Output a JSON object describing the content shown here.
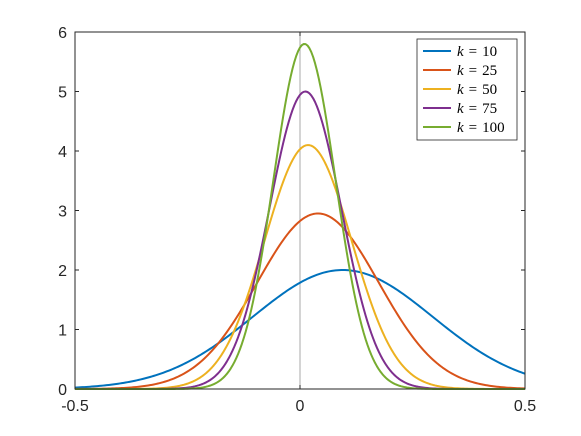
{
  "chart_data": {
    "type": "line",
    "title": "",
    "xlabel": "",
    "ylabel": "",
    "xlim": [
      -0.5,
      0.5
    ],
    "ylim": [
      0,
      6
    ],
    "grid": false,
    "xticks": [
      "-0.5",
      "0",
      "0.5"
    ],
    "yticks": [
      "0",
      "1",
      "2",
      "3",
      "4",
      "5",
      "6"
    ],
    "legend_position": "top-right",
    "reference_line_x": 0,
    "series": [
      {
        "name": "k = 10",
        "color": "#0072BD",
        "mu": 0.095,
        "sigma": 0.2,
        "peak": 2.0
      },
      {
        "name": "k = 25",
        "color": "#D95319",
        "mu": 0.04,
        "sigma": 0.135,
        "peak": 2.95
      },
      {
        "name": "k = 50",
        "color": "#EDB120",
        "mu": 0.018,
        "sigma": 0.097,
        "peak": 4.1
      },
      {
        "name": "k = 75",
        "color": "#7E2F8E",
        "mu": 0.012,
        "sigma": 0.08,
        "peak": 5.0
      },
      {
        "name": "k = 100",
        "color": "#77AC30",
        "mu": 0.01,
        "sigma": 0.069,
        "peak": 5.8
      }
    ],
    "legend": [
      {
        "var": "k",
        "rel": "=",
        "value": "10"
      },
      {
        "var": "k",
        "rel": "=",
        "value": "25"
      },
      {
        "var": "k",
        "rel": "=",
        "value": "50"
      },
      {
        "var": "k",
        "rel": "=",
        "value": "75"
      },
      {
        "var": "k",
        "rel": "=",
        "value": "100"
      }
    ]
  }
}
